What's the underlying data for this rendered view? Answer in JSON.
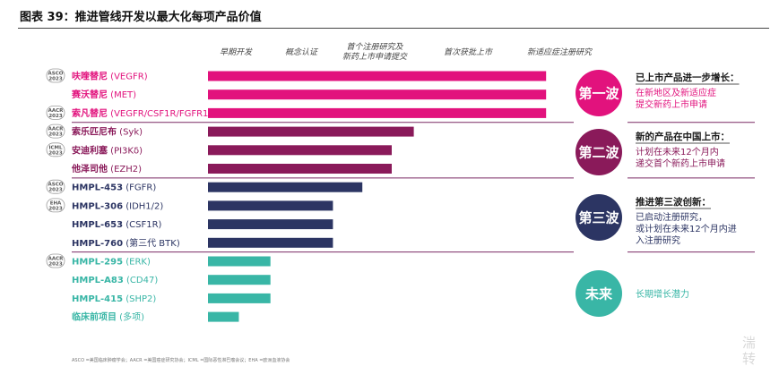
{
  "figure_title": "图表 39：推进管线开发以最大化每项产品价值",
  "footnote": "ASCO =美国临床肿瘤学会；AACR =美国癌症研究协会；ICML =国际恶性淋巴瘤会议；EHA =欧洲血液协会",
  "watermark": [
    "湍",
    "转"
  ],
  "colors": {
    "wave1": "#e2127d",
    "wave2": "#8a1a5a",
    "wave3": "#2c3563",
    "future": "#39b6a6",
    "divider": "#7a2a64"
  },
  "waves": [
    {
      "label": "第一波",
      "color": "#e2127d",
      "head": "已上市产品进一步增长：",
      "body": [
        "在新地区及新适应症",
        "提交新药上市申请"
      ]
    },
    {
      "label": "第二波",
      "color": "#8a1a5a",
      "head": "新的产品在中国上市：",
      "body": [
        "计划在未来12个月内",
        "递交首个新药上市申请"
      ]
    },
    {
      "label": "第三波",
      "color": "#2c3563",
      "head": "推进第三波创新：",
      "body": [
        "已启动注册研究，",
        "或计划在未来12个月内进",
        "入注册研究"
      ]
    },
    {
      "label": "未来",
      "color": "#39b6a6",
      "head": "",
      "body": [
        "长期增长潜力"
      ]
    }
  ],
  "chart_data": {
    "type": "bar",
    "orientation": "horizontal",
    "stages": [
      "早期开发",
      "概念认证",
      "首个注册研究及新药上市申请提交",
      "首次获批上市",
      "新适应症注册研究"
    ],
    "stage_lines": [
      [
        "早期开发"
      ],
      [
        "概念认证"
      ],
      [
        "首个注册研究及",
        "新药上市申请提交"
      ],
      [
        "首次获批上市"
      ],
      [
        "新适应症注册研究"
      ]
    ],
    "items": [
      {
        "name": "呋喹替尼",
        "detail": "(VEGFR)",
        "conf": [
          "ASCO",
          "2023"
        ],
        "stage": 4.6,
        "wave": 0
      },
      {
        "name": "赛沃替尼",
        "detail": "(MET)",
        "conf": [],
        "stage": 4.6,
        "wave": 0
      },
      {
        "name": "索凡替尼",
        "detail": "(VEGFR/CSF1R/FGFR1)",
        "conf": [
          "AACR",
          "2023"
        ],
        "stage": 4.6,
        "wave": 0
      },
      {
        "name": "索乐匹尼布",
        "detail": "(Syk)",
        "conf": [
          "AACR",
          "2023"
        ],
        "stage": 2.8,
        "wave": 1
      },
      {
        "name": "安迪利塞",
        "detail": "(PI3Kδ)",
        "conf": [
          "ICML",
          "2023"
        ],
        "stage": 2.5,
        "wave": 1
      },
      {
        "name": "他泽司他",
        "detail": "(EZH2)",
        "conf": [],
        "stage": 2.5,
        "wave": 1
      },
      {
        "name": "HMPL-453",
        "detail": "(FGFR)",
        "conf": [
          "ASCO",
          "2023"
        ],
        "stage": 2.1,
        "wave": 2
      },
      {
        "name": "HMPL-306",
        "detail": "(IDH1/2)",
        "conf": [
          "EHA",
          "2023"
        ],
        "stage": 1.7,
        "wave": 2
      },
      {
        "name": "HMPL-653",
        "detail": "(CSF1R)",
        "conf": [],
        "stage": 1.7,
        "wave": 2
      },
      {
        "name": "HMPL-760",
        "detail": "(第三代 BTK)",
        "conf": [],
        "stage": 1.7,
        "wave": 2
      },
      {
        "name": "HMPL-295",
        "detail": "(ERK)",
        "conf": [
          "AACR",
          "2023"
        ],
        "stage": 0.85,
        "wave": 3
      },
      {
        "name": "HMPL-A83",
        "detail": "(CD47)",
        "conf": [],
        "stage": 0.85,
        "wave": 3
      },
      {
        "name": "HMPL-415",
        "detail": "(SHP2)",
        "conf": [],
        "stage": 0.85,
        "wave": 3
      },
      {
        "name": "临床前项目",
        "detail": "(多项)",
        "conf": [],
        "stage": 0.42,
        "wave": 3
      }
    ]
  }
}
